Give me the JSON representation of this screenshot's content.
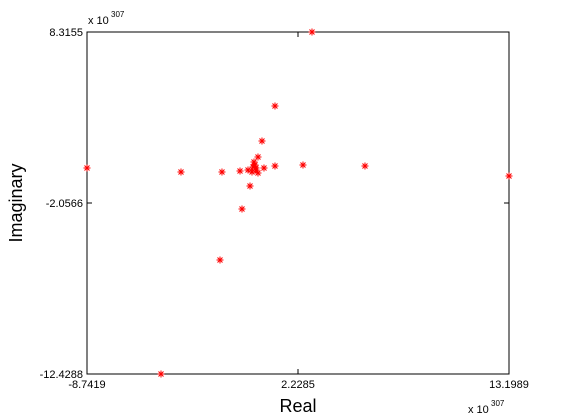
{
  "chart_data": {
    "type": "scatter",
    "x_label": "Real",
    "y_label": "Imaginary",
    "x_multiplier": {
      "base": "x 10",
      "exponent": "307"
    },
    "y_multiplier": {
      "base": "x 10",
      "exponent": "307"
    },
    "xlim": [
      -8.7419,
      13.1989
    ],
    "ylim": [
      -12.4288,
      8.3155
    ],
    "xticks": [
      -8.7419,
      2.2285,
      13.1989
    ],
    "yticks": [
      -12.4288,
      -2.0566,
      8.3155
    ],
    "grid": false,
    "color": "#ff0000",
    "x": [
      -8.7419,
      2.956,
      1.032,
      0.356,
      0.148,
      -3.855,
      -1.724,
      -0.787,
      -0.371,
      -0.267,
      -0.683,
      -1.827,
      -4.894,
      1.032,
      2.488,
      5.711,
      13.1989,
      -0.111,
      0.044,
      -0.163,
      0.148,
      0.46,
      -0.007,
      -0.059,
      0.044
    ],
    "y": [
      0.066,
      8.3155,
      3.827,
      1.704,
      0.734,
      -0.176,
      -0.176,
      -0.115,
      -0.055,
      -1.025,
      -2.421,
      -5.514,
      -12.4288,
      0.187,
      0.248,
      0.187,
      -0.419,
      0.127,
      0.066,
      -0.176,
      -0.237,
      0.066,
      0.248,
      0.43,
      -0.055
    ]
  }
}
